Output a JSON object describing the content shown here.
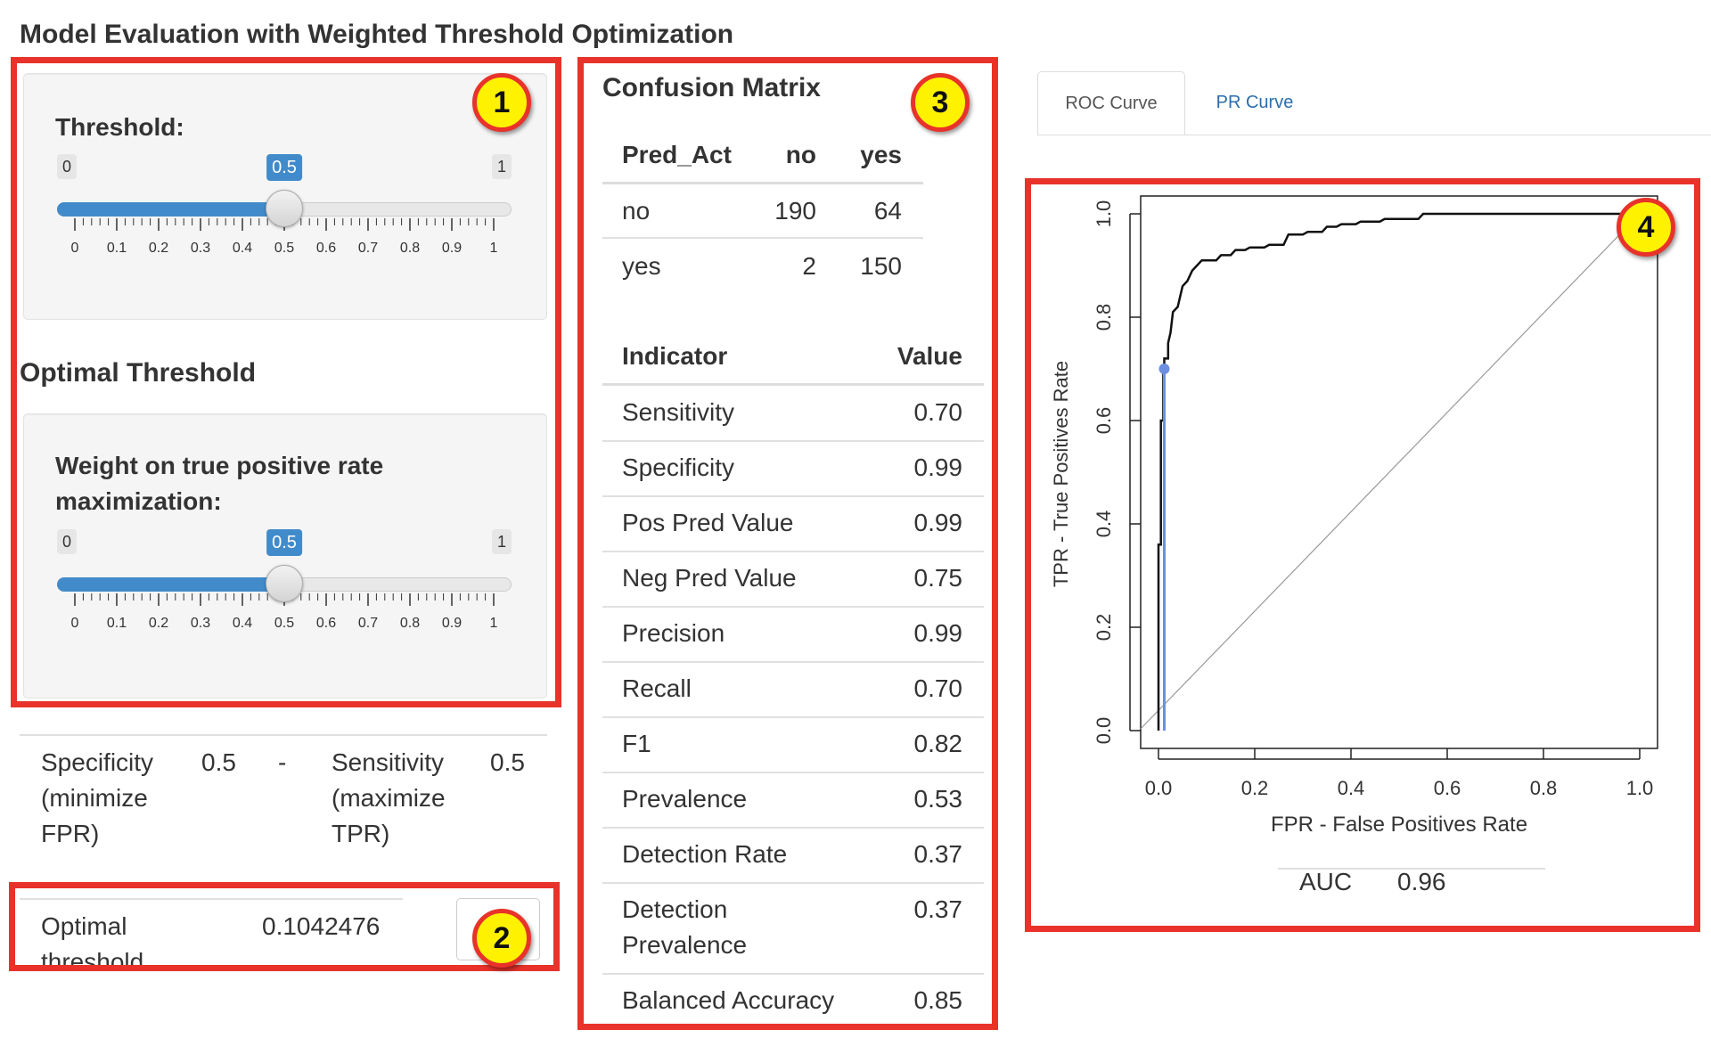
{
  "app": {
    "title": "Model Evaluation with Weighted Threshold Optimization"
  },
  "threshold_panel": {
    "label": "Threshold:",
    "slider": {
      "min_label": "0",
      "max_label": "1",
      "value_label": "0.5",
      "value": 0.5,
      "tick_labels": [
        "0",
        "0.1",
        "0.2",
        "0.3",
        "0.4",
        "0.5",
        "0.6",
        "0.7",
        "0.8",
        "0.9",
        "1"
      ]
    }
  },
  "optimal_panel": {
    "title": "Optimal Threshold",
    "weight_label_line1": "Weight on true positive rate",
    "weight_label_line2": "maximization:",
    "slider": {
      "min_label": "0",
      "max_label": "1",
      "value_label": "0.5",
      "value": 0.5,
      "tick_labels": [
        "0",
        "0.1",
        "0.2",
        "0.3",
        "0.4",
        "0.5",
        "0.6",
        "0.7",
        "0.8",
        "0.9",
        "1"
      ]
    }
  },
  "weights_table": {
    "spec_label": [
      "Specificity",
      "(minimize",
      "FPR)"
    ],
    "spec_value": "0.5",
    "separator": "-",
    "sens_label": [
      "Sensitivity",
      "(maximize",
      "TPR)"
    ],
    "sens_value": "0.5"
  },
  "optimal_result": {
    "label": [
      "Optimal",
      "threshold"
    ],
    "value": "0.1042476"
  },
  "confusion_matrix": {
    "title": "Confusion Matrix",
    "headers": [
      "Pred_Act",
      "no",
      "yes"
    ],
    "rows": [
      [
        "no",
        "190",
        "64"
      ],
      [
        "yes",
        "2",
        "150"
      ]
    ]
  },
  "indicators": {
    "headers": [
      "Indicator",
      "Value"
    ],
    "rows": [
      {
        "name": [
          "Sensitivity"
        ],
        "value": "0.70"
      },
      {
        "name": [
          "Specificity"
        ],
        "value": "0.99"
      },
      {
        "name": [
          "Pos Pred Value"
        ],
        "value": "0.99"
      },
      {
        "name": [
          "Neg Pred Value"
        ],
        "value": "0.75"
      },
      {
        "name": [
          "Precision"
        ],
        "value": "0.99"
      },
      {
        "name": [
          "Recall"
        ],
        "value": "0.70"
      },
      {
        "name": [
          "F1"
        ],
        "value": "0.82"
      },
      {
        "name": [
          "Prevalence"
        ],
        "value": "0.53"
      },
      {
        "name": [
          "Detection Rate"
        ],
        "value": "0.37"
      },
      {
        "name": [
          "Detection",
          "Prevalence"
        ],
        "value": "0.37"
      },
      {
        "name": [
          "Balanced Accuracy"
        ],
        "value": "0.85"
      }
    ]
  },
  "tabs": [
    {
      "label": "ROC Curve",
      "active": true
    },
    {
      "label": "PR Curve",
      "active": false
    }
  ],
  "annotations": [
    "1",
    "2",
    "3",
    "4"
  ],
  "colors": {
    "annotation_border": "#e8322a",
    "annotation_fill": "#fff200",
    "accent": "#428bca",
    "optimal_point": "#6d8ee0"
  },
  "auc": {
    "label": "AUC",
    "value": "0.96"
  },
  "chart_data": {
    "type": "line",
    "xlabel": "FPR - False Positives Rate",
    "ylabel": "TPR - True Positives Rate",
    "xlim": [
      0,
      1
    ],
    "ylim": [
      0,
      1
    ],
    "x_ticks": [
      "0.0",
      "0.2",
      "0.4",
      "0.6",
      "0.8",
      "1.0"
    ],
    "y_ticks": [
      "0.0",
      "0.2",
      "0.4",
      "0.6",
      "0.8",
      "1.0"
    ],
    "series": [
      {
        "values": [
          [
            0,
            0
          ],
          [
            0,
            0.36
          ],
          [
            0.005,
            0.36
          ],
          [
            0.005,
            0.6
          ],
          [
            0.01,
            0.6
          ],
          [
            0.01,
            0.7
          ],
          [
            0.012,
            0.7
          ],
          [
            0.012,
            0.72
          ],
          [
            0.02,
            0.72
          ],
          [
            0.02,
            0.75
          ],
          [
            0.025,
            0.77
          ],
          [
            0.03,
            0.81
          ],
          [
            0.04,
            0.82
          ],
          [
            0.045,
            0.84
          ],
          [
            0.05,
            0.86
          ],
          [
            0.06,
            0.87
          ],
          [
            0.065,
            0.88
          ],
          [
            0.07,
            0.89
          ],
          [
            0.08,
            0.9
          ],
          [
            0.09,
            0.91
          ],
          [
            0.12,
            0.91
          ],
          [
            0.13,
            0.92
          ],
          [
            0.15,
            0.92
          ],
          [
            0.16,
            0.93
          ],
          [
            0.18,
            0.93
          ],
          [
            0.19,
            0.935
          ],
          [
            0.22,
            0.935
          ],
          [
            0.23,
            0.94
          ],
          [
            0.26,
            0.94
          ],
          [
            0.27,
            0.96
          ],
          [
            0.3,
            0.96
          ],
          [
            0.31,
            0.965
          ],
          [
            0.34,
            0.965
          ],
          [
            0.35,
            0.975
          ],
          [
            0.37,
            0.975
          ],
          [
            0.38,
            0.98
          ],
          [
            0.41,
            0.98
          ],
          [
            0.42,
            0.985
          ],
          [
            0.46,
            0.985
          ],
          [
            0.47,
            0.99
          ],
          [
            0.54,
            0.99
          ],
          [
            0.55,
            1.0
          ],
          [
            1.0,
            1.0
          ]
        ]
      },
      {
        "values": [
          [
            0.012,
            0
          ],
          [
            0.012,
            0.7
          ]
        ]
      }
    ],
    "optimal_point": {
      "x": 0.012,
      "y": 0.7
    },
    "diagonal": [
      [
        0,
        0
      ],
      [
        1,
        1
      ]
    ]
  }
}
